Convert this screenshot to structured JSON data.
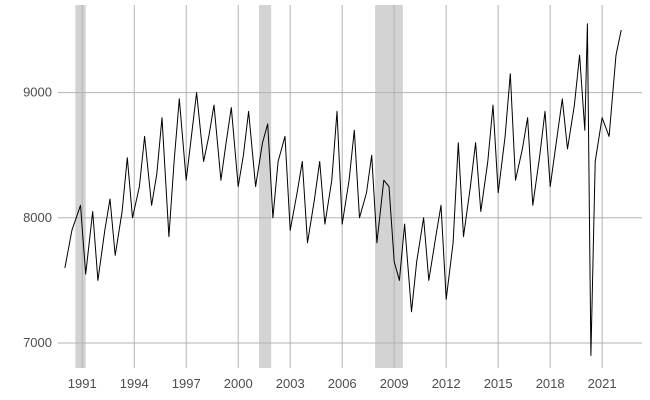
{
  "chart_data": {
    "type": "line",
    "title": "",
    "xlabel": "",
    "ylabel": "",
    "xlim": [
      1989.6,
      2023.3
    ],
    "ylim": [
      6800,
      9700
    ],
    "x_ticks": [
      1991,
      1994,
      1997,
      2000,
      2003,
      2006,
      2009,
      2012,
      2015,
      2018,
      2021
    ],
    "y_ticks": [
      7000,
      8000,
      9000
    ],
    "grid": true,
    "shaded_periods": [
      {
        "start": 1990.6,
        "end": 1991.2
      },
      {
        "start": 2001.2,
        "end": 2001.9
      },
      {
        "start": 2007.9,
        "end": 2009.5
      }
    ],
    "series": [
      {
        "x": [
          1990.0,
          1990.4,
          1990.9,
          1991.2,
          1991.6,
          1991.9,
          1992.3,
          1992.6,
          1992.9,
          1993.3,
          1993.6,
          1993.9,
          1994.3,
          1994.6,
          1995.0,
          1995.3,
          1995.6,
          1996.0,
          1996.3,
          1996.6,
          1997.0,
          1997.3,
          1997.6,
          1998.0,
          1998.3,
          1998.6,
          1999.0,
          1999.3,
          1999.6,
          2000.0,
          2000.3,
          2000.6,
          2001.0,
          2001.4,
          2001.7,
          2002.0,
          2002.3,
          2002.7,
          2003.0,
          2003.4,
          2003.7,
          2004.0,
          2004.4,
          2004.7,
          2005.0,
          2005.4,
          2005.7,
          2006.0,
          2006.4,
          2006.7,
          2007.0,
          2007.4,
          2007.7,
          2008.0,
          2008.4,
          2008.7,
          2009.0,
          2009.3,
          2009.6,
          2010.0,
          2010.3,
          2010.7,
          2011.0,
          2011.4,
          2011.7,
          2012.0,
          2012.4,
          2012.7,
          2013.0,
          2013.4,
          2013.7,
          2014.0,
          2014.4,
          2014.7,
          2015.0,
          2015.4,
          2015.7,
          2016.0,
          2016.4,
          2016.7,
          2017.0,
          2017.4,
          2017.7,
          2018.0,
          2018.4,
          2018.7,
          2019.0,
          2019.4,
          2019.7,
          2020.0,
          2020.15,
          2020.35,
          2020.6,
          2021.0,
          2021.4,
          2021.8,
          2022.1
        ],
        "values": [
          7600,
          7900,
          8100,
          7550,
          8050,
          7500,
          7900,
          8150,
          7700,
          8050,
          8480,
          8000,
          8250,
          8650,
          8100,
          8350,
          8800,
          7850,
          8450,
          8950,
          8300,
          8650,
          9000,
          8450,
          8650,
          8900,
          8300,
          8600,
          8880,
          8250,
          8500,
          8850,
          8250,
          8600,
          8750,
          8000,
          8450,
          8650,
          7900,
          8200,
          8450,
          7800,
          8150,
          8450,
          7950,
          8300,
          8850,
          7950,
          8300,
          8700,
          8000,
          8200,
          8500,
          7800,
          8300,
          8250,
          7650,
          7500,
          7950,
          7250,
          7650,
          8000,
          7500,
          7850,
          8100,
          7350,
          7800,
          8600,
          7850,
          8250,
          8600,
          8050,
          8450,
          8900,
          8200,
          8650,
          9150,
          8300,
          8550,
          8800,
          8100,
          8500,
          8850,
          8250,
          8650,
          8950,
          8550,
          8900,
          9300,
          8700,
          9550,
          6900,
          8450,
          8800,
          8650,
          9300,
          9500
        ]
      }
    ]
  }
}
